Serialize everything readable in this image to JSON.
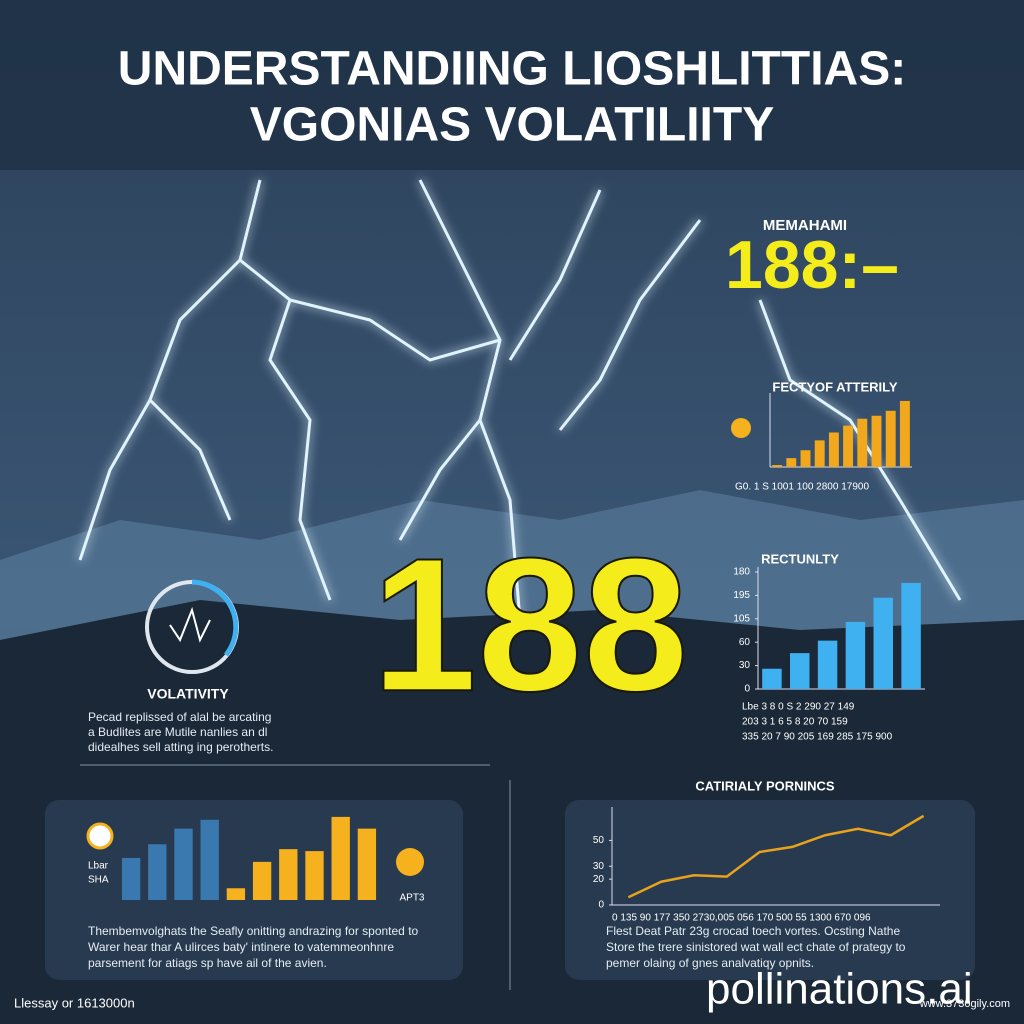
{
  "title": [
    "UNDERSTANDIING LIOSHLITTIAS:",
    "VGONIAS VOLATILIITY"
  ],
  "headline_number": "188",
  "top_stat": {
    "label": "MEMAHAMI",
    "value": "188:–"
  },
  "gauge": {
    "label": "VOLATIVITY",
    "text": [
      "Pecad replissed of alal be arcating",
      "a Budlites are Mutile nanlies an dl",
      "didealhes sell atting ing perotherts."
    ]
  },
  "chart_data": [
    {
      "type": "bar",
      "title": "FECTYOF ATTERILY",
      "values": [
        2,
        9,
        17,
        27,
        35,
        42,
        49,
        52,
        57,
        67
      ],
      "color": "#f2a81d",
      "ylim": [
        0,
        70
      ],
      "x_label_text": "G0. 1 S 1001 100 2800 17900"
    },
    {
      "type": "bar",
      "title": "RECTUNLTY",
      "values": [
        26,
        46,
        62,
        86,
        117,
        136
      ],
      "color": "#3fb0f0",
      "ylim": [
        0,
        150
      ],
      "yticks": [
        0,
        30,
        60,
        {
          "value": 90,
          "label": "105"
        },
        {
          "value": 120,
          "label": "195"
        },
        {
          "value": 150,
          "label": "180"
        }
      ],
      "table_rows": [
        "Lbe   3   8   0   S   2   290  27  149",
        "203   3   1   6   5   8   20   70  159",
        "335  20   7  90  205 169  285 175 900"
      ]
    },
    {
      "type": "bar",
      "values": [
        43,
        57,
        73,
        82,
        12,
        39,
        52,
        50,
        85,
        73
      ],
      "colors": [
        "#3a78b0",
        "#3a78b0",
        "#3a78b0",
        "#3a78b0",
        "#f5b21e",
        "#f5b21e",
        "#f5b21e",
        "#f5b21e",
        "#f5b21e",
        "#f5b21e"
      ],
      "ylim": [
        0,
        90
      ],
      "legend_left": [
        "Lbar",
        "SHA"
      ],
      "legend_right": "APT3"
    },
    {
      "type": "line",
      "title": "CATIRIALY PORNINCS",
      "values": [
        6,
        18,
        23,
        22,
        41,
        45,
        54,
        59,
        54,
        69
      ],
      "color": "#e8a21c",
      "ylim": [
        0,
        72
      ],
      "yticks": [
        0,
        20,
        30,
        50
      ],
      "x_label_text": "0  135  90  177  350  2730,005  056  170  500  55  1300  670  096"
    }
  ],
  "bottom_left_text": [
    "Thembemvolghats the Seafly onitting andrazing for sponted to",
    "Warer hear thar A ulirces baty' intinere to vatemmeonhnre",
    "parsement for atiags sp have ail of the avien."
  ],
  "bottom_right_text": [
    "Flest Deat Patr 23g crocad toech vortes. Ocsting Nathe",
    "Store the trere sinistored wat wall ect chate of prategy to",
    "pemer olaing of gnes analvatiqy opnits."
  ],
  "footer": "Llessay or 1613000n",
  "watermark": "pollinations.ai",
  "watermark_url": "www.3730gily.com"
}
